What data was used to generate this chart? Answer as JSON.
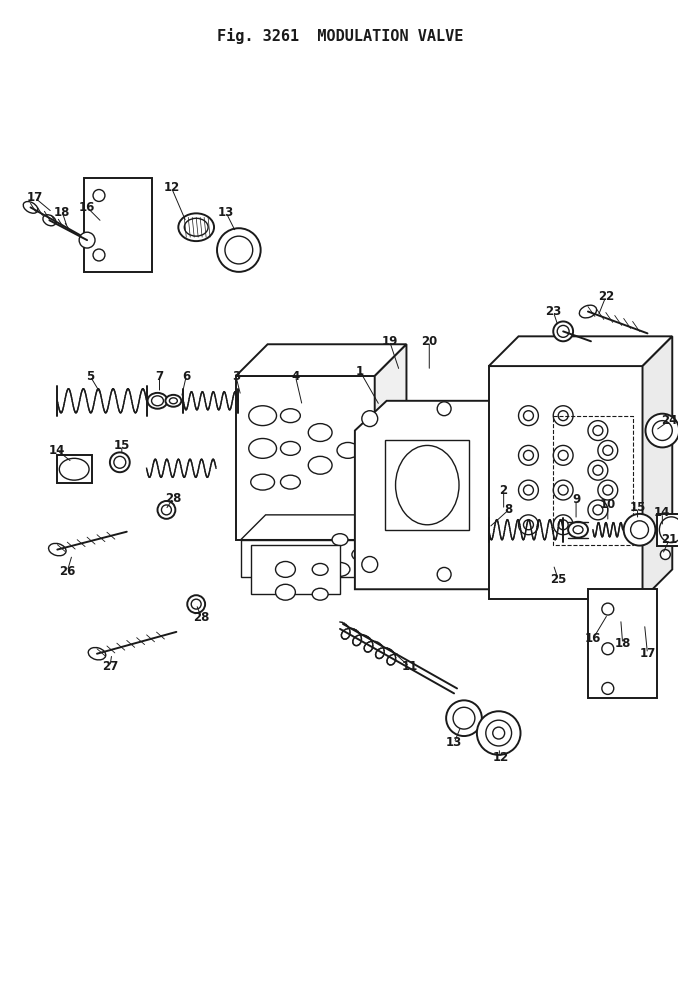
{
  "title": "Fig. 3261  MODULATION VALVE",
  "bg_color": "#ffffff",
  "ink_color": "#1a1a1a",
  "fig_width": 6.81,
  "fig_height": 9.96,
  "dpi": 100
}
